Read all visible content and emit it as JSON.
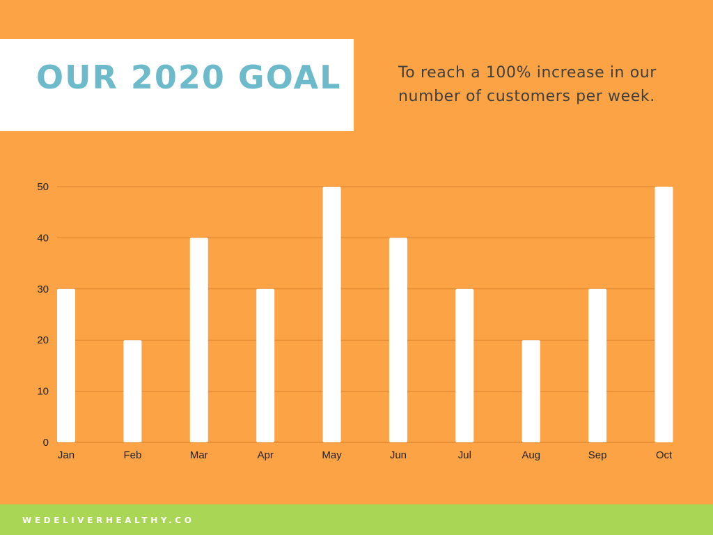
{
  "title": "OUR 2020 GOAL",
  "subtitle": "To reach a 100% increase in our number of customers per week.",
  "footer": "WEDELIVERHEALTHY.CO",
  "colors": {
    "background": "#FCA445",
    "title": "#6CBACA",
    "bars": "#ffffff",
    "gridlines": "#D9822B",
    "footer_band": "#A9D654"
  },
  "chart_data": {
    "type": "bar",
    "title": "",
    "xlabel": "",
    "ylabel": "",
    "categories": [
      "Jan",
      "Feb",
      "Mar",
      "Apr",
      "May",
      "Jun",
      "Jul",
      "Aug",
      "Sep",
      "Oct"
    ],
    "values": [
      30,
      20,
      40,
      30,
      50,
      40,
      30,
      20,
      30,
      50
    ],
    "ylim": [
      0,
      50
    ],
    "yticks": [
      0,
      10,
      20,
      30,
      40,
      50
    ],
    "grid": true,
    "legend": "none"
  }
}
